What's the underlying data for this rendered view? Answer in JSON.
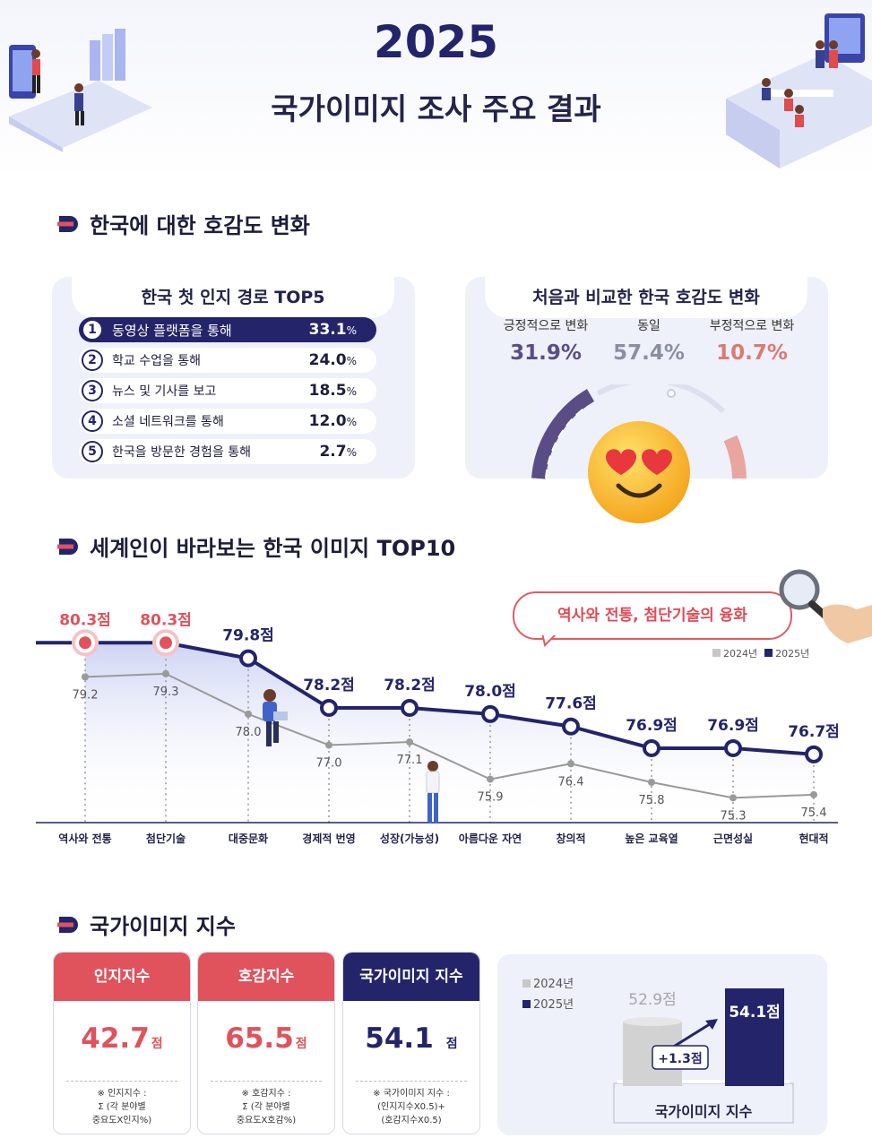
{
  "header": {
    "year": "2025",
    "subtitle": "국가이미지 조사 주요 결과"
  },
  "section1": {
    "title": "한국에 대한 호감도 변화"
  },
  "top5": {
    "title": "한국 첫 인지 경로 TOP5",
    "items": [
      {
        "rank": "1",
        "label": "동영상 플랫폼을 통해",
        "value": "33.1",
        "unit": "%"
      },
      {
        "rank": "2",
        "label": "학교 수업을 통해",
        "value": "24.0",
        "unit": "%"
      },
      {
        "rank": "3",
        "label": "뉴스 및 기사를 보고",
        "value": "18.5",
        "unit": "%"
      },
      {
        "rank": "4",
        "label": "소셜 네트워크를 통해",
        "value": "12.0",
        "unit": "%"
      },
      {
        "rank": "5",
        "label": "한국을 방문한 경험을 통해",
        "value": "2.7",
        "unit": "%"
      }
    ]
  },
  "favor": {
    "title": "처음과 비교한 한국 호감도 변화",
    "items": [
      {
        "label": "긍정적으로 변화",
        "value": "31.9%",
        "color": "#5a4d86"
      },
      {
        "label": "동일",
        "value": "57.4%",
        "color": "#8a8fa0"
      },
      {
        "label": "부정적으로 변화",
        "value": "10.7%",
        "color": "#d97b72"
      }
    ]
  },
  "section2": {
    "title": "세계인이 바라보는 한국 이미지 TOP10"
  },
  "bubble": {
    "text": "역사와 전통, 첨단기술의 융화"
  },
  "chart_data": {
    "type": "line",
    "title": "세계인이 바라보는 한국 이미지 TOP10",
    "categories": [
      "역사와 전통",
      "첨단기술",
      "대중문화",
      "경제적 번영",
      "성장(가능성)",
      "아름다운 자연",
      "창의적",
      "높은 교육열",
      "근면성실",
      "현대적"
    ],
    "series": [
      {
        "name": "2024년",
        "color": "#9a9a9a",
        "values": [
          79.2,
          79.3,
          78.0,
          77.0,
          77.1,
          75.9,
          76.4,
          75.8,
          75.3,
          75.4
        ],
        "labels": [
          "79.2",
          "79.3",
          "78.0",
          "77.0",
          "77.1",
          "75.9",
          "76.4",
          "75.8",
          "75.3",
          "75.4"
        ]
      },
      {
        "name": "2025년",
        "color": "#24246b",
        "values": [
          80.3,
          80.3,
          79.8,
          78.2,
          78.2,
          78.0,
          77.6,
          76.9,
          76.9,
          76.7
        ],
        "labels": [
          "80.3점",
          "80.3점",
          "79.8점",
          "78.2점",
          "78.2점",
          "78.0점",
          "77.6점",
          "76.9점",
          "76.9점",
          "76.7점"
        ]
      }
    ],
    "highlight_color": "#e0525c",
    "legend": [
      "2024년",
      "2025년"
    ],
    "ylim": [
      74.5,
      80.8
    ]
  },
  "section3": {
    "title": "국가이미지 지수"
  },
  "cards": [
    {
      "title": "인지지수",
      "value": "42.7",
      "unit": "점",
      "color": "#e0525c",
      "value_color": "#e0525c",
      "formula": [
        "※ 인지지수 :",
        "Σ (각 분야별",
        "중요도X인지%)"
      ]
    },
    {
      "title": "호감지수",
      "value": "65.5",
      "unit": "점",
      "color": "#e0525c",
      "value_color": "#e0525c",
      "formula": [
        "※ 호감지수 :",
        "Σ (각 분야별",
        "중요도X호감%)"
      ]
    },
    {
      "title": "국가이미지 지수",
      "value": "54.1",
      "unit": "점",
      "color": "#24246b",
      "value_color": "#24246b",
      "formula": [
        "※ 국가이미지 지수 :",
        "(인지지수X0.5)+",
        "(호감지수X0.5)"
      ]
    }
  ],
  "index_chart": {
    "legend": [
      "2024년",
      "2025년"
    ],
    "v2024": "52.9점",
    "v2025": "54.1점",
    "diff": "+1.3점",
    "label": "국가이미지 지수",
    "values": [
      52.9,
      54.1
    ]
  }
}
